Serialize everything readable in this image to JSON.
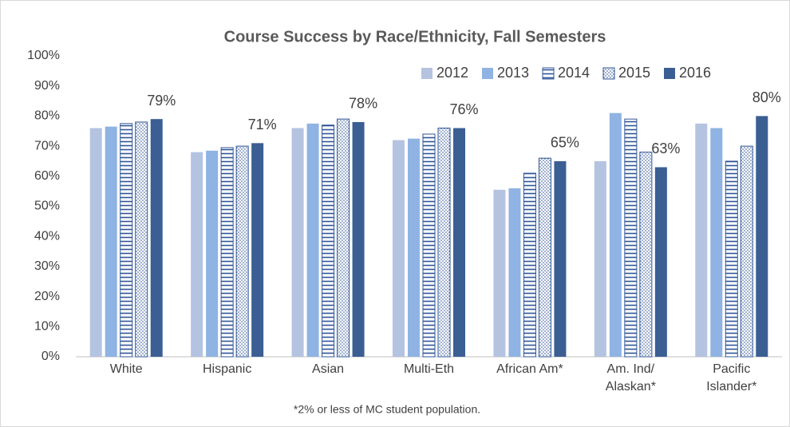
{
  "chart_data": {
    "type": "bar",
    "title": "Course Success by Race/Ethnicity, Fall Semesters",
    "footnote": "*2% or less of MC student population.",
    "categories": [
      "White",
      "Hispanic",
      "Asian",
      "Multi-Eth",
      "African Am*",
      "Am. Ind/ Alaskan*",
      "Pacific Islander*"
    ],
    "series": [
      {
        "name": "2012",
        "color": "#b4c3e0",
        "pattern": "solid",
        "values": [
          76,
          68,
          76,
          72,
          55.5,
          65,
          77.5
        ]
      },
      {
        "name": "2013",
        "color": "#8fb3e2",
        "pattern": "solid",
        "values": [
          76.5,
          68.5,
          77.5,
          72.5,
          56,
          81,
          76
        ]
      },
      {
        "name": "2014",
        "color": "#2f5597",
        "pattern": "horizontal-lines",
        "values": [
          77.5,
          69.5,
          77,
          74,
          61,
          79,
          65
        ]
      },
      {
        "name": "2015",
        "color": "#2f5597",
        "pattern": "dots",
        "values": [
          78,
          70,
          79,
          76,
          66,
          68,
          70
        ]
      },
      {
        "name": "2016",
        "color": "#3b5e93",
        "pattern": "solid",
        "values": [
          79,
          71,
          78,
          76,
          65,
          63,
          80
        ],
        "value_labels": [
          "79%",
          "71%",
          "78%",
          "76%",
          "65%",
          "63%",
          "80%"
        ]
      }
    ],
    "ylim": [
      0,
      100
    ],
    "yticks": [
      {
        "value": 0,
        "label": "0%"
      },
      {
        "value": 10,
        "label": "10%"
      },
      {
        "value": 20,
        "label": "20%"
      },
      {
        "value": 30,
        "label": "30%"
      },
      {
        "value": 40,
        "label": "40%"
      },
      {
        "value": 50,
        "label": "50%"
      },
      {
        "value": 60,
        "label": "60%"
      },
      {
        "value": 70,
        "label": "70%"
      },
      {
        "value": 80,
        "label": "80%"
      },
      {
        "value": 90,
        "label": "90%"
      },
      {
        "value": 100,
        "label": "100%"
      }
    ],
    "grid": false,
    "legend": "top-right"
  }
}
